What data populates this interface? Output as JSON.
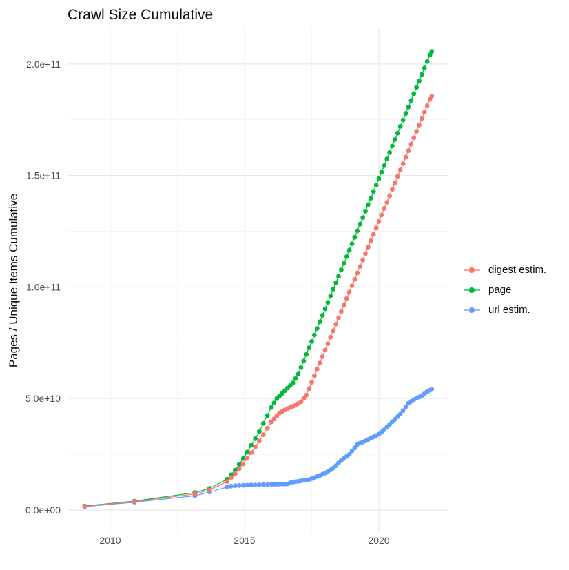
{
  "chart_data": {
    "type": "scatter",
    "title": "Crawl Size Cumulative",
    "xlabel": "",
    "ylabel": "Pages / Unique Items Cumulative",
    "legend_position": "right",
    "grid": true,
    "background_color": "#FFFFFF",
    "major_grid_color": "#E8E8E8",
    "minor_grid_color": "#F3F3F3",
    "tick_label_color": "#4D4D4D",
    "text_color": "#0A0A0A",
    "xlim": [
      2008.4,
      2022.6
    ],
    "ylim_billions": [
      -10.3,
      215.9
    ],
    "x_ticks": {
      "values": [
        2010,
        2015,
        2020
      ],
      "labels": [
        "2010",
        "2015",
        "2020"
      ]
    },
    "x_minor_ticks": [
      2012.5,
      2017.5
    ],
    "y_ticks": {
      "values_billions": [
        0,
        50,
        100,
        150,
        200
      ],
      "labels": [
        "0.0e+00",
        "5.0e+10",
        "1.0e+11",
        "1.5e+11",
        "2.0e+11"
      ]
    },
    "y_minor_ticks_billions": [
      25,
      75,
      125,
      175
    ],
    "point_format": "[year, cumulative_count_billions]",
    "series": [
      {
        "name": "digest estim.",
        "color": "#F8766D",
        "points": [
          [
            2009.05,
            1.7
          ],
          [
            2010.9,
            3.8
          ],
          [
            2013.15,
            7.2
          ],
          [
            2013.7,
            9.0
          ],
          [
            2014.35,
            12.8
          ],
          [
            2014.5,
            14.6
          ],
          [
            2014.65,
            16.3
          ],
          [
            2014.8,
            18.5
          ],
          [
            2014.95,
            20.7
          ],
          [
            2015.1,
            23.2
          ],
          [
            2015.25,
            25.8
          ],
          [
            2015.4,
            28.3
          ],
          [
            2015.55,
            30.9
          ],
          [
            2015.7,
            33.8
          ],
          [
            2015.85,
            36.7
          ],
          [
            2016.0,
            39.5
          ],
          [
            2016.1,
            40.8
          ],
          [
            2016.2,
            42.2
          ],
          [
            2016.3,
            43.5
          ],
          [
            2016.4,
            44.2
          ],
          [
            2016.5,
            44.9
          ],
          [
            2016.6,
            45.5
          ],
          [
            2016.7,
            46.0
          ],
          [
            2016.8,
            46.5
          ],
          [
            2016.9,
            47.0
          ],
          [
            2017.0,
            47.8
          ],
          [
            2017.1,
            48.5
          ],
          [
            2017.2,
            50.0
          ],
          [
            2017.3,
            51.5
          ],
          [
            2017.4,
            54.4
          ],
          [
            2017.5,
            57.3
          ],
          [
            2017.6,
            60.2
          ],
          [
            2017.7,
            63.1
          ],
          [
            2017.8,
            65.9
          ],
          [
            2017.9,
            68.8
          ],
          [
            2018.0,
            71.7
          ],
          [
            2018.1,
            74.6
          ],
          [
            2018.2,
            77.5
          ],
          [
            2018.3,
            80.4
          ],
          [
            2018.4,
            83.3
          ],
          [
            2018.5,
            86.1
          ],
          [
            2018.6,
            89.0
          ],
          [
            2018.7,
            91.9
          ],
          [
            2018.8,
            94.8
          ],
          [
            2018.9,
            97.7
          ],
          [
            2019.0,
            100.6
          ],
          [
            2019.1,
            103.4
          ],
          [
            2019.2,
            106.3
          ],
          [
            2019.3,
            109.2
          ],
          [
            2019.4,
            112.1
          ],
          [
            2019.5,
            115.0
          ],
          [
            2019.6,
            117.9
          ],
          [
            2019.7,
            120.7
          ],
          [
            2019.8,
            123.6
          ],
          [
            2019.9,
            126.5
          ],
          [
            2020.0,
            129.4
          ],
          [
            2020.1,
            132.3
          ],
          [
            2020.2,
            135.2
          ],
          [
            2020.3,
            138.0
          ],
          [
            2020.4,
            140.9
          ],
          [
            2020.5,
            143.8
          ],
          [
            2020.6,
            146.7
          ],
          [
            2020.7,
            149.6
          ],
          [
            2020.8,
            152.5
          ],
          [
            2020.9,
            155.3
          ],
          [
            2021.0,
            158.2
          ],
          [
            2021.1,
            161.1
          ],
          [
            2021.2,
            164.0
          ],
          [
            2021.3,
            166.9
          ],
          [
            2021.4,
            169.8
          ],
          [
            2021.5,
            172.6
          ],
          [
            2021.6,
            175.5
          ],
          [
            2021.7,
            178.4
          ],
          [
            2021.8,
            181.3
          ],
          [
            2021.9,
            184.2
          ],
          [
            2021.97,
            185.6
          ]
        ]
      },
      {
        "name": "page",
        "color": "#00BA38",
        "points": [
          [
            2009.05,
            1.8
          ],
          [
            2010.9,
            4.0
          ],
          [
            2013.15,
            7.8
          ],
          [
            2013.7,
            9.7
          ],
          [
            2014.35,
            13.8
          ],
          [
            2014.5,
            15.8
          ],
          [
            2014.65,
            17.9
          ],
          [
            2014.8,
            20.5
          ],
          [
            2014.95,
            23.1
          ],
          [
            2015.1,
            26.0
          ],
          [
            2015.25,
            29.0
          ],
          [
            2015.4,
            32.0
          ],
          [
            2015.55,
            35.2
          ],
          [
            2015.7,
            38.8
          ],
          [
            2015.85,
            42.4
          ],
          [
            2016.0,
            46.0
          ],
          [
            2016.1,
            48.0
          ],
          [
            2016.2,
            50.0
          ],
          [
            2016.3,
            51.2
          ],
          [
            2016.4,
            52.3
          ],
          [
            2016.5,
            53.5
          ],
          [
            2016.6,
            54.7
          ],
          [
            2016.7,
            55.8
          ],
          [
            2016.8,
            57.0
          ],
          [
            2016.9,
            59.0
          ],
          [
            2017.0,
            61.0
          ],
          [
            2017.1,
            63.9
          ],
          [
            2017.2,
            66.8
          ],
          [
            2017.3,
            69.8
          ],
          [
            2017.4,
            72.7
          ],
          [
            2017.5,
            75.6
          ],
          [
            2017.6,
            78.5
          ],
          [
            2017.7,
            81.4
          ],
          [
            2017.8,
            84.4
          ],
          [
            2017.9,
            87.3
          ],
          [
            2018.0,
            90.2
          ],
          [
            2018.1,
            93.1
          ],
          [
            2018.2,
            96.0
          ],
          [
            2018.3,
            99.0
          ],
          [
            2018.4,
            101.9
          ],
          [
            2018.5,
            104.8
          ],
          [
            2018.6,
            107.7
          ],
          [
            2018.7,
            110.6
          ],
          [
            2018.8,
            113.6
          ],
          [
            2018.9,
            116.5
          ],
          [
            2019.0,
            119.4
          ],
          [
            2019.1,
            122.3
          ],
          [
            2019.2,
            125.2
          ],
          [
            2019.3,
            128.2
          ],
          [
            2019.4,
            131.1
          ],
          [
            2019.5,
            134.0
          ],
          [
            2019.6,
            136.9
          ],
          [
            2019.7,
            139.8
          ],
          [
            2019.8,
            142.8
          ],
          [
            2019.9,
            145.7
          ],
          [
            2020.0,
            148.6
          ],
          [
            2020.1,
            151.5
          ],
          [
            2020.2,
            154.4
          ],
          [
            2020.3,
            157.4
          ],
          [
            2020.4,
            160.3
          ],
          [
            2020.5,
            163.2
          ],
          [
            2020.6,
            166.1
          ],
          [
            2020.7,
            169.0
          ],
          [
            2020.8,
            172.0
          ],
          [
            2020.9,
            174.9
          ],
          [
            2021.0,
            177.8
          ],
          [
            2021.1,
            180.7
          ],
          [
            2021.2,
            183.6
          ],
          [
            2021.3,
            186.6
          ],
          [
            2021.4,
            189.5
          ],
          [
            2021.5,
            192.4
          ],
          [
            2021.6,
            195.3
          ],
          [
            2021.7,
            198.2
          ],
          [
            2021.8,
            201.2
          ],
          [
            2021.9,
            204.1
          ],
          [
            2021.97,
            205.6
          ]
        ]
      },
      {
        "name": "url estim.",
        "color": "#619CFF",
        "points": [
          [
            2009.05,
            1.5
          ],
          [
            2010.9,
            3.5
          ],
          [
            2013.15,
            6.4
          ],
          [
            2013.7,
            8.1
          ],
          [
            2014.35,
            10.3
          ],
          [
            2014.5,
            10.7
          ],
          [
            2014.65,
            10.9
          ],
          [
            2014.8,
            11.0
          ],
          [
            2014.95,
            11.1
          ],
          [
            2015.1,
            11.15
          ],
          [
            2015.25,
            11.2
          ],
          [
            2015.4,
            11.25
          ],
          [
            2015.55,
            11.3
          ],
          [
            2015.7,
            11.35
          ],
          [
            2015.85,
            11.4
          ],
          [
            2016.0,
            11.5
          ],
          [
            2016.1,
            11.55
          ],
          [
            2016.2,
            11.6
          ],
          [
            2016.3,
            11.6
          ],
          [
            2016.4,
            11.65
          ],
          [
            2016.5,
            11.65
          ],
          [
            2016.6,
            11.7
          ],
          [
            2016.7,
            12.2
          ],
          [
            2016.8,
            12.5
          ],
          [
            2016.9,
            12.7
          ],
          [
            2017.0,
            12.9
          ],
          [
            2017.1,
            13.1
          ],
          [
            2017.2,
            13.3
          ],
          [
            2017.3,
            13.4
          ],
          [
            2017.4,
            13.7
          ],
          [
            2017.5,
            14.1
          ],
          [
            2017.6,
            14.5
          ],
          [
            2017.7,
            15.0
          ],
          [
            2017.8,
            15.5
          ],
          [
            2017.9,
            16.1
          ],
          [
            2018.0,
            16.6
          ],
          [
            2018.1,
            17.3
          ],
          [
            2018.2,
            18.0
          ],
          [
            2018.3,
            18.8
          ],
          [
            2018.4,
            19.9
          ],
          [
            2018.5,
            21.1
          ],
          [
            2018.6,
            22.2
          ],
          [
            2018.7,
            23.1
          ],
          [
            2018.8,
            24.1
          ],
          [
            2018.9,
            25.0
          ],
          [
            2019.0,
            26.5
          ],
          [
            2019.1,
            27.9
          ],
          [
            2019.2,
            29.4
          ],
          [
            2019.3,
            30.0
          ],
          [
            2019.4,
            30.5
          ],
          [
            2019.5,
            31.0
          ],
          [
            2019.6,
            31.6
          ],
          [
            2019.7,
            32.2
          ],
          [
            2019.8,
            32.8
          ],
          [
            2019.9,
            33.4
          ],
          [
            2020.0,
            34.0
          ],
          [
            2020.1,
            35.0
          ],
          [
            2020.2,
            36.0
          ],
          [
            2020.3,
            37.2
          ],
          [
            2020.4,
            38.4
          ],
          [
            2020.5,
            39.6
          ],
          [
            2020.6,
            40.7
          ],
          [
            2020.7,
            41.9
          ],
          [
            2020.8,
            43.0
          ],
          [
            2020.9,
            44.6
          ],
          [
            2021.0,
            46.3
          ],
          [
            2021.1,
            47.9
          ],
          [
            2021.2,
            48.7
          ],
          [
            2021.3,
            49.5
          ],
          [
            2021.4,
            50.1
          ],
          [
            2021.5,
            50.7
          ],
          [
            2021.6,
            51.3
          ],
          [
            2021.7,
            52.2
          ],
          [
            2021.8,
            53.1
          ],
          [
            2021.9,
            53.7
          ],
          [
            2021.97,
            54.1
          ]
        ]
      }
    ]
  }
}
